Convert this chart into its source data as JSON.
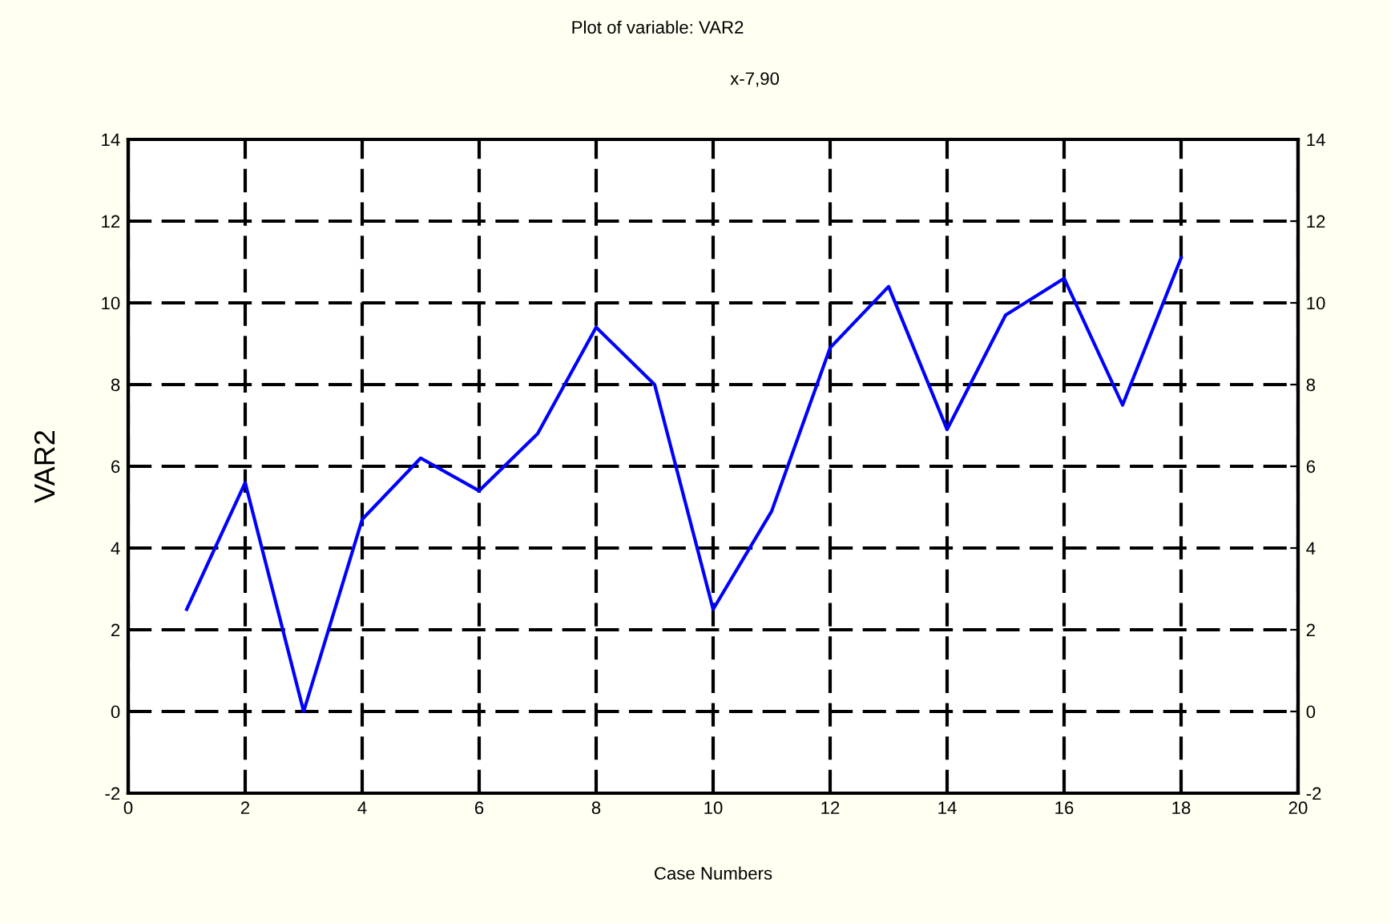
{
  "chart_data": {
    "type": "line",
    "title": "Plot of variable: VAR2",
    "subtitle": "x-7,90",
    "xlabel": "Case Numbers",
    "ylabel": "VAR2",
    "x": [
      1,
      2,
      3,
      4,
      5,
      6,
      7,
      8,
      9,
      10,
      11,
      12,
      13,
      14,
      15,
      16,
      17,
      18
    ],
    "series": [
      {
        "color": "#0000ff",
        "values": [
          2.5,
          5.6,
          0.0,
          4.7,
          6.2,
          5.4,
          6.8,
          9.4,
          8.0,
          2.5,
          4.9,
          8.9,
          10.4,
          6.9,
          9.7,
          10.6,
          7.5,
          11.1
        ]
      }
    ],
    "xlim": [
      0,
      20
    ],
    "xticks": [
      0,
      2,
      4,
      6,
      8,
      10,
      12,
      14,
      16,
      18,
      20
    ],
    "ylim": [
      -2,
      14
    ],
    "yticks": [
      -2,
      0,
      2,
      4,
      6,
      8,
      10,
      12,
      14
    ],
    "y2lim": [
      -2,
      14
    ],
    "y2ticks": [
      -2,
      0,
      2,
      4,
      6,
      8,
      10,
      12,
      14
    ],
    "grid": true,
    "marker": "none",
    "line_style": "solid"
  }
}
